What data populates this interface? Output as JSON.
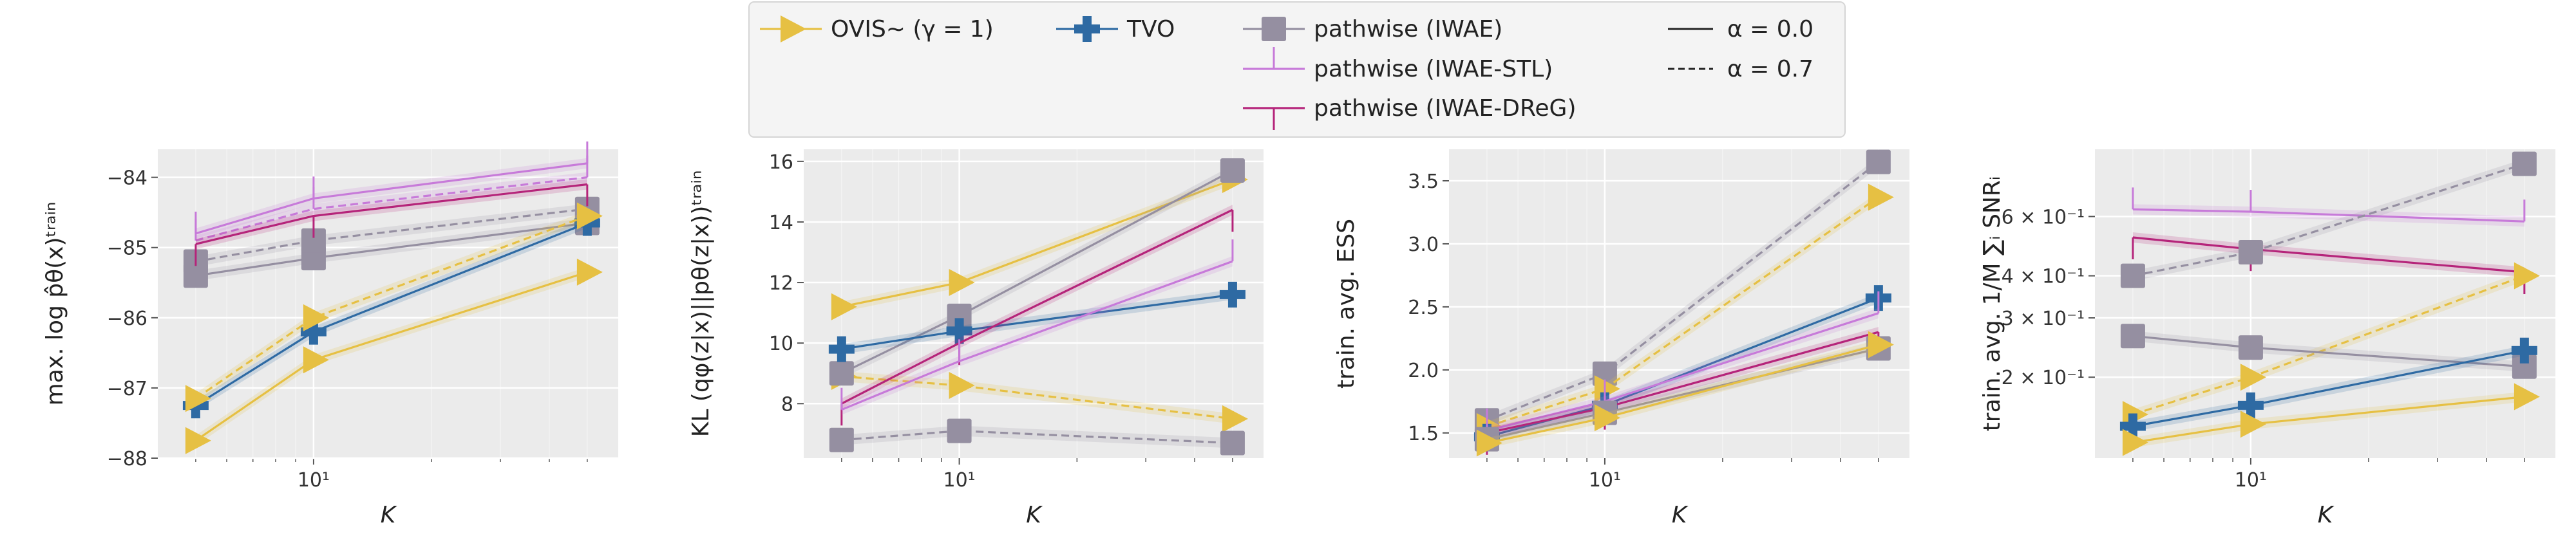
{
  "legend": {
    "entries": [
      {
        "label": "OVIS∼ (γ = 1)",
        "series": "OVIS",
        "marker": "triangle-right"
      },
      {
        "label": "TVO",
        "series": "TVO",
        "marker": "plus"
      },
      {
        "label": "pathwise (IWAE)",
        "series": "IWAE",
        "marker": "square"
      },
      {
        "label": "pathwise (IWAE-STL)",
        "series": "STL",
        "marker": "tick"
      },
      {
        "label": "pathwise (IWAE-DReG)",
        "series": "DReG",
        "marker": "tick"
      },
      {
        "label": "α = 0.0",
        "style": "solid"
      },
      {
        "label": "α = 0.7",
        "style": "dashed"
      }
    ]
  },
  "colors": {
    "OVIS": "#E6C043",
    "TVO": "#2E6AA3",
    "IWAE": "#958FA1",
    "STL": "#C77AD9",
    "DReG": "#B5247A",
    "panel_bg": "#EBEBEB",
    "grid": "#FFFFFF"
  },
  "chart_data": [
    {
      "type": "line",
      "xscale": "log",
      "yscale": "linear",
      "xlabel": "K",
      "ylabel": "max. log p̂θ(x)ᵗʳᵃⁱⁿ",
      "xlim": [
        4,
        60
      ],
      "ylim": [
        -88,
        -83.6
      ],
      "xticks": [
        10
      ],
      "xtick_labels": [
        "10¹"
      ],
      "yticks": [
        -88,
        -87,
        -86,
        -85,
        -84
      ],
      "ytick_labels": [
        "−88",
        "−87",
        "−86",
        "−85",
        "−84"
      ],
      "series": [
        {
          "series": "IWAE",
          "alpha": 0.0,
          "x": [
            5,
            10,
            50
          ],
          "y": [
            -85.4,
            -85.15,
            -84.65
          ]
        },
        {
          "series": "IWAE",
          "alpha": 0.7,
          "x": [
            5,
            10,
            50
          ],
          "y": [
            -85.2,
            -84.9,
            -84.45
          ]
        },
        {
          "series": "STL",
          "alpha": 0.0,
          "x": [
            5,
            10,
            50
          ],
          "y": [
            -84.8,
            -84.3,
            -83.8
          ]
        },
        {
          "series": "STL",
          "alpha": 0.7,
          "x": [
            5,
            10,
            50
          ],
          "y": [
            -84.9,
            -84.45,
            -84.0
          ]
        },
        {
          "series": "DReG",
          "alpha": 0.0,
          "x": [
            5,
            10,
            50
          ],
          "y": [
            -84.95,
            -84.55,
            -84.1
          ]
        },
        {
          "series": "TVO",
          "alpha": 0.0,
          "x": [
            5,
            10,
            50
          ],
          "y": [
            -87.25,
            -86.2,
            -84.65
          ]
        },
        {
          "series": "OVIS",
          "alpha": 0.0,
          "x": [
            5,
            10,
            50
          ],
          "y": [
            -87.75,
            -86.6,
            -85.35
          ]
        },
        {
          "series": "OVIS",
          "alpha": 0.7,
          "x": [
            5,
            10,
            50
          ],
          "y": [
            -87.15,
            -86.0,
            -84.55
          ]
        }
      ]
    },
    {
      "type": "line",
      "xscale": "log",
      "yscale": "linear",
      "xlabel": "K",
      "ylabel": "KL (qφ(z|x)||pθ(z|x))ᵗʳᵃⁱⁿ",
      "xlim": [
        4,
        60
      ],
      "ylim": [
        6.2,
        16.4
      ],
      "xticks": [
        10
      ],
      "xtick_labels": [
        "10¹"
      ],
      "yticks": [
        8,
        10,
        12,
        14,
        16
      ],
      "ytick_labels": [
        "8",
        "10",
        "12",
        "14",
        "16"
      ],
      "series": [
        {
          "series": "OVIS",
          "alpha": 0.0,
          "x": [
            5,
            10,
            50
          ],
          "y": [
            11.2,
            12.0,
            15.4
          ]
        },
        {
          "series": "OVIS",
          "alpha": 0.7,
          "x": [
            5,
            10,
            50
          ],
          "y": [
            8.9,
            8.6,
            7.5
          ]
        },
        {
          "series": "IWAE",
          "alpha": 0.0,
          "x": [
            5,
            10,
            50
          ],
          "y": [
            9.0,
            10.9,
            15.7
          ]
        },
        {
          "series": "IWAE",
          "alpha": 0.7,
          "x": [
            5,
            10,
            50
          ],
          "y": [
            6.8,
            7.1,
            6.7
          ]
        },
        {
          "series": "TVO",
          "alpha": 0.0,
          "x": [
            5,
            10,
            50
          ],
          "y": [
            9.8,
            10.4,
            11.6
          ]
        },
        {
          "series": "DReG",
          "alpha": 0.0,
          "x": [
            5,
            10,
            50
          ],
          "y": [
            8.0,
            10.0,
            14.4
          ]
        },
        {
          "series": "STL",
          "alpha": 0.0,
          "x": [
            5,
            10,
            50
          ],
          "y": [
            7.8,
            9.4,
            12.7
          ]
        }
      ]
    },
    {
      "type": "line",
      "xscale": "log",
      "yscale": "linear",
      "xlabel": "K",
      "ylabel": "train. avg. ESS",
      "xlim": [
        4,
        60
      ],
      "ylim": [
        1.3,
        3.75
      ],
      "xticks": [
        10
      ],
      "xtick_labels": [
        "10¹"
      ],
      "yticks": [
        1.5,
        2.0,
        2.5,
        3.0,
        3.5
      ],
      "ytick_labels": [
        "1.5",
        "2.0",
        "2.5",
        "3.0",
        "3.5"
      ],
      "series": [
        {
          "series": "IWAE",
          "alpha": 0.7,
          "x": [
            5,
            10,
            50
          ],
          "y": [
            1.6,
            1.97,
            3.65
          ]
        },
        {
          "series": "OVIS",
          "alpha": 0.7,
          "x": [
            5,
            10,
            50
          ],
          "y": [
            1.55,
            1.85,
            3.37
          ]
        },
        {
          "series": "TVO",
          "alpha": 0.0,
          "x": [
            5,
            10,
            50
          ],
          "y": [
            1.47,
            1.72,
            2.57
          ]
        },
        {
          "series": "STL",
          "alpha": 0.0,
          "x": [
            5,
            10,
            50
          ],
          "y": [
            1.52,
            1.75,
            2.45
          ]
        },
        {
          "series": "DReG",
          "alpha": 0.0,
          "x": [
            5,
            10,
            50
          ],
          "y": [
            1.5,
            1.7,
            2.3
          ]
        },
        {
          "series": "IWAE",
          "alpha": 0.0,
          "x": [
            5,
            10,
            50
          ],
          "y": [
            1.45,
            1.66,
            2.17
          ]
        },
        {
          "series": "OVIS",
          "alpha": 0.0,
          "x": [
            5,
            10,
            50
          ],
          "y": [
            1.42,
            1.62,
            2.2
          ]
        }
      ]
    },
    {
      "type": "line",
      "xscale": "log",
      "yscale": "log",
      "xlabel": "K",
      "ylabel": "train. avg. 1/M ∑ᵢ SNRᵢ",
      "xlim": [
        4,
        60
      ],
      "ylim": [
        0.115,
        0.95
      ],
      "xticks": [
        10
      ],
      "xtick_labels": [
        "10¹"
      ],
      "yticks": [
        0.2,
        0.3,
        0.4,
        0.6
      ],
      "ytick_labels": [
        "2 × 10⁻¹",
        "3 × 10⁻¹",
        "4 × 10⁻¹",
        "6 × 10⁻¹"
      ],
      "series": [
        {
          "series": "STL",
          "alpha": 0.0,
          "x": [
            5,
            10,
            50
          ],
          "y": [
            0.63,
            0.62,
            0.58
          ]
        },
        {
          "series": "DReG",
          "alpha": 0.0,
          "x": [
            5,
            10,
            50
          ],
          "y": [
            0.52,
            0.48,
            0.41
          ]
        },
        {
          "series": "IWAE",
          "alpha": 0.7,
          "x": [
            5,
            10,
            50
          ],
          "y": [
            0.4,
            0.47,
            0.86
          ]
        },
        {
          "series": "OVIS",
          "alpha": 0.7,
          "x": [
            5,
            10,
            50
          ],
          "y": [
            0.155,
            0.2,
            0.4
          ]
        },
        {
          "series": "IWAE",
          "alpha": 0.0,
          "x": [
            5,
            10,
            50
          ],
          "y": [
            0.265,
            0.245,
            0.215
          ]
        },
        {
          "series": "TVO",
          "alpha": 0.0,
          "x": [
            5,
            10,
            50
          ],
          "y": [
            0.143,
            0.165,
            0.24
          ]
        },
        {
          "series": "OVIS",
          "alpha": 0.0,
          "x": [
            5,
            10,
            50
          ],
          "y": [
            0.128,
            0.145,
            0.175
          ]
        }
      ]
    }
  ]
}
